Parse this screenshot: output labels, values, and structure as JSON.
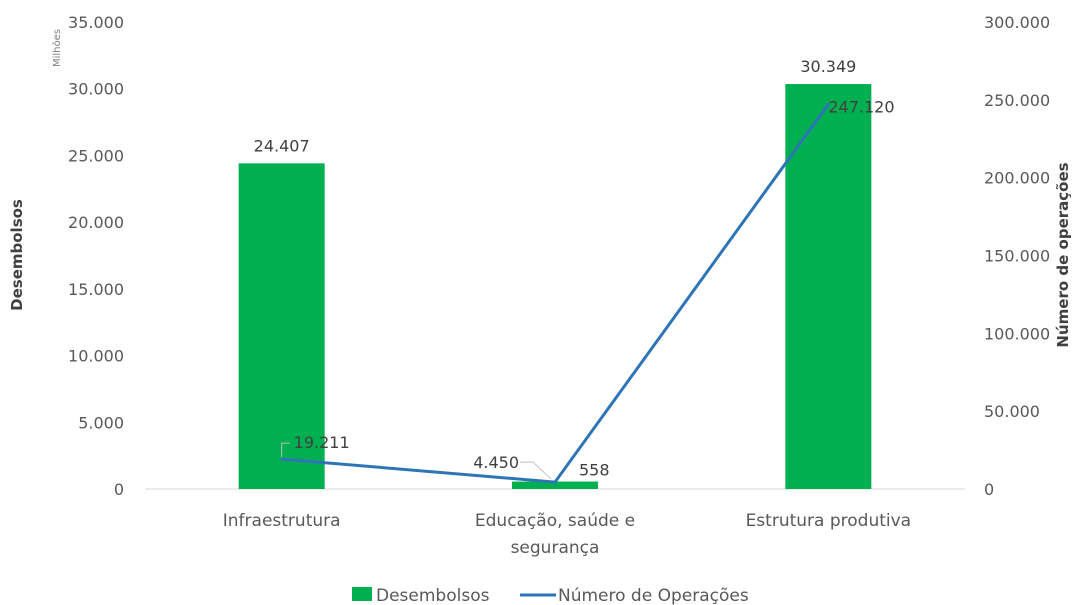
{
  "chart_data": {
    "type": "bar+line",
    "categories": [
      "Infraestrutura",
      "Educação, saúde e segurança",
      "Estrutura produtiva"
    ],
    "category_lines": [
      [
        "Infraestrutura"
      ],
      [
        "Educação, saúde e",
        "segurança"
      ],
      [
        "Estrutura produtiva"
      ]
    ],
    "series": [
      {
        "name": "Desembolsos",
        "type": "bar",
        "axis": "left",
        "color": "#00B050",
        "values": [
          24407,
          558,
          30349
        ],
        "labels": [
          "24.407",
          "558",
          "30.349"
        ]
      },
      {
        "name": "Número de Operações",
        "type": "line",
        "axis": "right",
        "color": "#2E75B6",
        "values": [
          19211,
          4450,
          247120
        ],
        "labels": [
          "19.211",
          "4.450",
          "247.120"
        ]
      }
    ],
    "ylabel": "Desembolsos",
    "y2label": "Número de operações",
    "y_units": "Milhões",
    "ylim": [
      0,
      35000
    ],
    "y2lim": [
      0,
      300000
    ],
    "y_ticks": [
      0,
      5000,
      10000,
      15000,
      20000,
      25000,
      30000,
      35000
    ],
    "y_tick_labels": [
      "0",
      "5.000",
      "10.000",
      "15.000",
      "20.000",
      "25.000",
      "30.000",
      "35.000"
    ],
    "y2_ticks": [
      0,
      50000,
      100000,
      150000,
      200000,
      250000,
      300000
    ],
    "y2_tick_labels": [
      "0",
      "50.000",
      "100.000",
      "150.000",
      "200.000",
      "250.000",
      "300.000"
    ],
    "grid": false,
    "legend_position": "bottom"
  }
}
